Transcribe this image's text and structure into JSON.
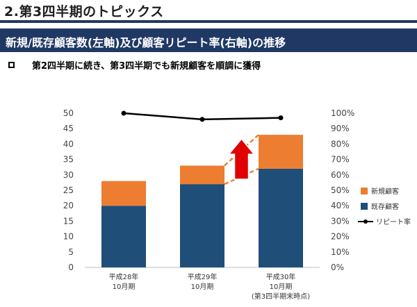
{
  "page": {
    "heading": "2.第3四半期のトピックス",
    "banner": "新規/既存顧客数(左軸)及び顧客リピート率(右軸)の推移",
    "bullet": "第2四半期に続き、第3四半期でも新規顧客を順調に獲得"
  },
  "chart_data": {
    "type": "bar",
    "stacked": true,
    "categories": [
      [
        "平成28年",
        "10月期"
      ],
      [
        "平成29年",
        "10月期"
      ],
      [
        "平成30年",
        "10月期",
        "(第3四半期末時点)"
      ]
    ],
    "series": [
      {
        "name": "既存顧客",
        "values": [
          20,
          27,
          32
        ],
        "color": "#1f4e79"
      },
      {
        "name": "新規顧客",
        "values": [
          8,
          6,
          11
        ],
        "color": "#ed7d31"
      }
    ],
    "line_series": {
      "name": "リピート率",
      "values": [
        1.0,
        0.96,
        0.97
      ],
      "axis": "right",
      "color": "#000000"
    },
    "y_left": {
      "min": 0,
      "max": 50,
      "ticks": [
        "0",
        "5",
        "10",
        "15",
        "20",
        "25",
        "30",
        "35",
        "40",
        "45",
        "50"
      ]
    },
    "y_right": {
      "min": 0,
      "max": 1.0,
      "ticks": [
        "0%",
        "10%",
        "20%",
        "30%",
        "40%",
        "50%",
        "60%",
        "70%",
        "80%",
        "90%",
        "100%"
      ]
    },
    "legend": [
      "新規顧客",
      "既存顧客",
      "リピート率"
    ],
    "legend_position": "right",
    "annotation": "red upward arrow with dashed orange lines highlighting growth of new customers",
    "grid": false
  }
}
